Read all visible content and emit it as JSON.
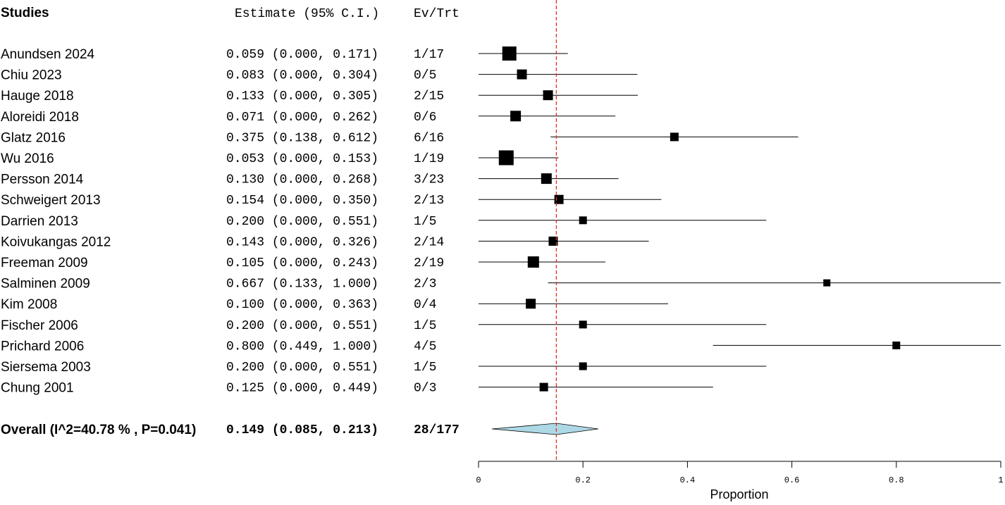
{
  "headers": {
    "studies": "Studies",
    "estimate": "Estimate (95% C.I.)",
    "ev_trt": "Ev/Trt"
  },
  "chart_data": {
    "type": "forest",
    "xlabel": "Proportion",
    "xlim": [
      0,
      1
    ],
    "xticks": [
      "0",
      "0.2",
      "0.4",
      "0.6",
      "0.8",
      "1"
    ],
    "xtick_values": [
      0,
      0.2,
      0.4,
      0.6,
      0.8,
      1.0
    ],
    "reference_line": 0.149,
    "reference_line_color": "#e0301e",
    "diamond_color": "#add8e6",
    "studies": [
      {
        "name": "Anundsen 2024",
        "estimate": 0.059,
        "lower": 0.0,
        "upper": 0.171,
        "ci_text": "0.059 (0.000, 0.171)",
        "ev_trt": "1/17"
      },
      {
        "name": "Chiu 2023",
        "estimate": 0.083,
        "lower": 0.0,
        "upper": 0.304,
        "ci_text": "0.083 (0.000, 0.304)",
        "ev_trt": "0/5"
      },
      {
        "name": "Hauge 2018",
        "estimate": 0.133,
        "lower": 0.0,
        "upper": 0.305,
        "ci_text": "0.133 (0.000, 0.305)",
        "ev_trt": "2/15"
      },
      {
        "name": "Aloreidi 2018",
        "estimate": 0.071,
        "lower": 0.0,
        "upper": 0.262,
        "ci_text": "0.071 (0.000, 0.262)",
        "ev_trt": "0/6"
      },
      {
        "name": "Glatz 2016",
        "estimate": 0.375,
        "lower": 0.138,
        "upper": 0.612,
        "ci_text": "0.375 (0.138, 0.612)",
        "ev_trt": "6/16"
      },
      {
        "name": "Wu 2016",
        "estimate": 0.053,
        "lower": 0.0,
        "upper": 0.153,
        "ci_text": "0.053 (0.000, 0.153)",
        "ev_trt": "1/19"
      },
      {
        "name": "Persson 2014",
        "estimate": 0.13,
        "lower": 0.0,
        "upper": 0.268,
        "ci_text": "0.130 (0.000, 0.268)",
        "ev_trt": "3/23"
      },
      {
        "name": "Schweigert 2013",
        "estimate": 0.154,
        "lower": 0.0,
        "upper": 0.35,
        "ci_text": "0.154 (0.000, 0.350)",
        "ev_trt": "2/13"
      },
      {
        "name": "Darrien 2013",
        "estimate": 0.2,
        "lower": 0.0,
        "upper": 0.551,
        "ci_text": "0.200 (0.000, 0.551)",
        "ev_trt": "1/5"
      },
      {
        "name": "Koivukangas 2012",
        "estimate": 0.143,
        "lower": 0.0,
        "upper": 0.326,
        "ci_text": "0.143 (0.000, 0.326)",
        "ev_trt": "2/14"
      },
      {
        "name": "Freeman 2009",
        "estimate": 0.105,
        "lower": 0.0,
        "upper": 0.243,
        "ci_text": "0.105 (0.000, 0.243)",
        "ev_trt": "2/19"
      },
      {
        "name": "Salminen 2009",
        "estimate": 0.667,
        "lower": 0.133,
        "upper": 1.0,
        "ci_text": "0.667 (0.133, 1.000)",
        "ev_trt": "2/3"
      },
      {
        "name": "Kim 2008",
        "estimate": 0.1,
        "lower": 0.0,
        "upper": 0.363,
        "ci_text": "0.100 (0.000, 0.363)",
        "ev_trt": "0/4"
      },
      {
        "name": "Fischer 2006",
        "estimate": 0.2,
        "lower": 0.0,
        "upper": 0.551,
        "ci_text": "0.200 (0.000, 0.551)",
        "ev_trt": "1/5"
      },
      {
        "name": "Prichard 2006",
        "estimate": 0.8,
        "lower": 0.449,
        "upper": 1.0,
        "ci_text": "0.800 (0.449, 1.000)",
        "ev_trt": "4/5"
      },
      {
        "name": "Siersema 2003",
        "estimate": 0.2,
        "lower": 0.0,
        "upper": 0.551,
        "ci_text": "0.200 (0.000, 0.551)",
        "ev_trt": "1/5"
      },
      {
        "name": "Chung 2001",
        "estimate": 0.125,
        "lower": 0.0,
        "upper": 0.449,
        "ci_text": "0.125 (0.000, 0.449)",
        "ev_trt": "0/3"
      }
    ],
    "overall": {
      "label": "Overall (I^2=40.78 % , P=0.041)",
      "estimate": 0.149,
      "lower": 0.085,
      "upper": 0.213,
      "ci_text": "0.149 (0.085, 0.213)",
      "ev_trt": "28/177"
    }
  }
}
